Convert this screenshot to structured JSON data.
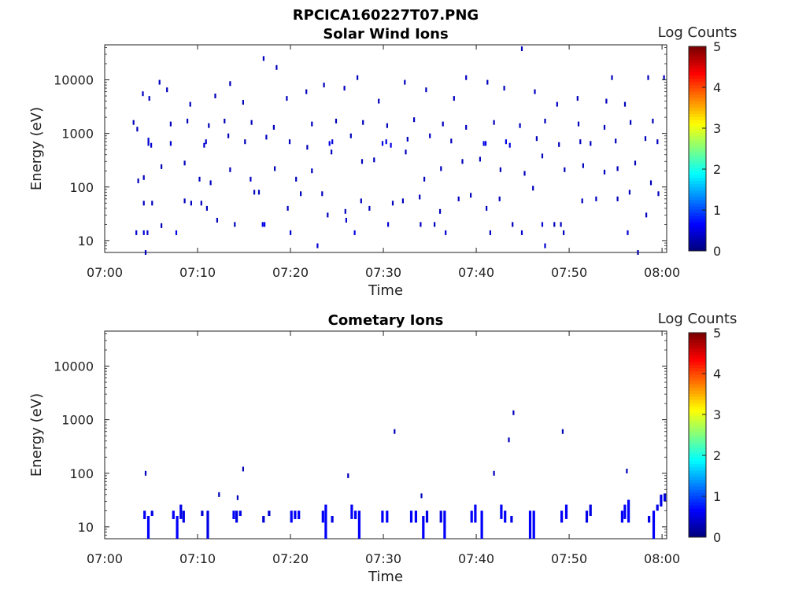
{
  "figure": {
    "title": "RPCICA160227T07.PNG"
  },
  "chart_data": [
    {
      "type": "heatmap",
      "title": "Solar Wind Ions",
      "xlabel": "Time",
      "ylabel": "Energy (eV)",
      "y_scale": "log",
      "xlim_minutes": [
        0,
        60.5
      ],
      "ylim": [
        6,
        45000
      ],
      "x_ticks": [
        "07:00",
        "07:10",
        "07:20",
        "07:30",
        "07:40",
        "07:50",
        "08:00"
      ],
      "y_ticks": [
        "10",
        "100",
        "1000",
        "10000"
      ],
      "y_tick_values": [
        10,
        100,
        1000,
        10000
      ],
      "colorbar": {
        "label": "Log Counts",
        "min": 0,
        "max": 5,
        "ticks": [
          "0",
          "1",
          "2",
          "3",
          "4",
          "5"
        ],
        "colormap": "jet"
      },
      "grid": false,
      "note_points": "each point: [minute after 07:00, energy eV, log count]",
      "points": [
        [
          4.4,
          6,
          0.3
        ],
        [
          3.4,
          14,
          0.4
        ],
        [
          4.2,
          14,
          0.4
        ],
        [
          4.6,
          14,
          0.4
        ],
        [
          6.1,
          19,
          0.3
        ],
        [
          7.7,
          14,
          0.5
        ],
        [
          12.1,
          24,
          0.3
        ],
        [
          14.0,
          20,
          0.3
        ],
        [
          17.0,
          20,
          0.5
        ],
        [
          17.2,
          20,
          0.5
        ],
        [
          20.0,
          14,
          0.4
        ],
        [
          22.9,
          8,
          0.4
        ],
        [
          24.0,
          30,
          0.3
        ],
        [
          26.0,
          24,
          0.4
        ],
        [
          26.9,
          14,
          0.5
        ],
        [
          30.5,
          20,
          0.4
        ],
        [
          34.0,
          20,
          0.3
        ],
        [
          35.5,
          20,
          0.3
        ],
        [
          36.7,
          14,
          0.4
        ],
        [
          41.5,
          14,
          0.3
        ],
        [
          43.9,
          20,
          0.3
        ],
        [
          44.9,
          14,
          0.4
        ],
        [
          47.4,
          8,
          0.4
        ],
        [
          47.1,
          20,
          0.4
        ],
        [
          48.4,
          20,
          0.3
        ],
        [
          49.1,
          20,
          0.3
        ],
        [
          49.4,
          14,
          0.3
        ],
        [
          56.3,
          14,
          0.4
        ],
        [
          57.4,
          6,
          0.2
        ],
        [
          4.2,
          50,
          0.3
        ],
        [
          5.1,
          50,
          0.3
        ],
        [
          8.6,
          55,
          0.3
        ],
        [
          9.3,
          50,
          0.3
        ],
        [
          10.4,
          50,
          0.3
        ],
        [
          11.0,
          40,
          0.3
        ],
        [
          16.1,
          80,
          0.3
        ],
        [
          16.6,
          80,
          0.3
        ],
        [
          19.7,
          40,
          0.3
        ],
        [
          21.1,
          75,
          0.3
        ],
        [
          23.4,
          75,
          0.3
        ],
        [
          25.9,
          35,
          0.3
        ],
        [
          27.6,
          55,
          0.3
        ],
        [
          28.5,
          40,
          0.3
        ],
        [
          31.0,
          50,
          0.3
        ],
        [
          32.1,
          55,
          0.3
        ],
        [
          33.9,
          65,
          0.3
        ],
        [
          36.1,
          35,
          0.3
        ],
        [
          38.1,
          60,
          0.3
        ],
        [
          39.4,
          70,
          0.3
        ],
        [
          41.1,
          40,
          0.3
        ],
        [
          42.5,
          60,
          0.3
        ],
        [
          46.1,
          95,
          0.3
        ],
        [
          51.4,
          55,
          0.3
        ],
        [
          52.9,
          60,
          0.3
        ],
        [
          55.2,
          60,
          0.3
        ],
        [
          56.5,
          80,
          0.3
        ],
        [
          58.3,
          30,
          0.3
        ],
        [
          59.6,
          75,
          0.3
        ],
        [
          3.6,
          130,
          0.3
        ],
        [
          4.2,
          150,
          0.3
        ],
        [
          6.1,
          240,
          0.3
        ],
        [
          8.6,
          280,
          0.3
        ],
        [
          10.2,
          140,
          0.3
        ],
        [
          11.4,
          120,
          0.3
        ],
        [
          13.5,
          210,
          0.3
        ],
        [
          15.7,
          140,
          0.3
        ],
        [
          18.3,
          220,
          0.3
        ],
        [
          20.6,
          140,
          0.3
        ],
        [
          22.3,
          200,
          0.3
        ],
        [
          24.4,
          450,
          0.3
        ],
        [
          27.7,
          300,
          0.3
        ],
        [
          29.0,
          320,
          0.3
        ],
        [
          32.4,
          450,
          0.3
        ],
        [
          34.4,
          140,
          0.3
        ],
        [
          36.2,
          220,
          0.3
        ],
        [
          38.5,
          300,
          0.3
        ],
        [
          40.4,
          330,
          0.3
        ],
        [
          42.6,
          210,
          0.3
        ],
        [
          45.2,
          180,
          0.3
        ],
        [
          47.1,
          380,
          0.3
        ],
        [
          49.5,
          210,
          0.3
        ],
        [
          51.5,
          250,
          0.3
        ],
        [
          53.8,
          190,
          0.3
        ],
        [
          55.2,
          220,
          0.3
        ],
        [
          57.1,
          280,
          0.3
        ],
        [
          58.8,
          120,
          0.3
        ],
        [
          4.7,
          650,
          0.4
        ],
        [
          4.7,
          750,
          0.4
        ],
        [
          5.0,
          600,
          0.4
        ],
        [
          7.1,
          650,
          0.4
        ],
        [
          10.7,
          600,
          0.4
        ],
        [
          10.9,
          700,
          0.4
        ],
        [
          13.3,
          900,
          0.3
        ],
        [
          15.1,
          700,
          0.3
        ],
        [
          17.4,
          850,
          0.3
        ],
        [
          19.9,
          700,
          0.3
        ],
        [
          21.8,
          550,
          0.3
        ],
        [
          24.2,
          650,
          0.5
        ],
        [
          24.5,
          700,
          0.5
        ],
        [
          26.5,
          900,
          0.3
        ],
        [
          29.9,
          650,
          0.5
        ],
        [
          30.3,
          700,
          0.5
        ],
        [
          30.8,
          600,
          0.5
        ],
        [
          32.6,
          780,
          0.3
        ],
        [
          35.0,
          900,
          0.3
        ],
        [
          37.3,
          720,
          0.3
        ],
        [
          40.8,
          650,
          0.5
        ],
        [
          41.0,
          650,
          0.5
        ],
        [
          43.2,
          700,
          0.5
        ],
        [
          43.6,
          600,
          0.5
        ],
        [
          46.5,
          800,
          0.3
        ],
        [
          48.9,
          620,
          0.3
        ],
        [
          51.2,
          700,
          0.3
        ],
        [
          52.3,
          650,
          0.3
        ],
        [
          55.0,
          720,
          0.3
        ],
        [
          58.2,
          800,
          0.3
        ],
        [
          59.5,
          700,
          0.3
        ],
        [
          3.1,
          1600,
          0.3
        ],
        [
          3.5,
          1200,
          0.3
        ],
        [
          7.1,
          1500,
          0.3
        ],
        [
          8.9,
          1700,
          0.3
        ],
        [
          11.2,
          1400,
          0.3
        ],
        [
          12.9,
          1700,
          0.3
        ],
        [
          15.8,
          1600,
          0.3
        ],
        [
          18.2,
          1300,
          0.3
        ],
        [
          22.3,
          1500,
          0.3
        ],
        [
          24.9,
          1700,
          0.3
        ],
        [
          27.8,
          1600,
          0.3
        ],
        [
          30.4,
          1400,
          0.3
        ],
        [
          33.3,
          1800,
          0.3
        ],
        [
          36.4,
          1500,
          0.3
        ],
        [
          38.9,
          1300,
          0.3
        ],
        [
          41.9,
          1600,
          0.3
        ],
        [
          44.7,
          1400,
          0.3
        ],
        [
          47.4,
          1700,
          0.3
        ],
        [
          51.0,
          1500,
          0.3
        ],
        [
          53.8,
          1300,
          0.3
        ],
        [
          56.6,
          1600,
          0.3
        ],
        [
          59.0,
          1700,
          0.3
        ],
        [
          4.1,
          5500,
          0.3
        ],
        [
          4.8,
          4500,
          0.3
        ],
        [
          5.9,
          9000,
          0.3
        ],
        [
          6.7,
          6500,
          0.3
        ],
        [
          9.2,
          3500,
          0.3
        ],
        [
          11.9,
          5000,
          0.3
        ],
        [
          13.5,
          8500,
          0.3
        ],
        [
          14.9,
          3800,
          0.3
        ],
        [
          17.1,
          25000,
          0.3
        ],
        [
          18.5,
          17000,
          0.3
        ],
        [
          19.6,
          4500,
          0.3
        ],
        [
          21.7,
          6000,
          0.3
        ],
        [
          23.6,
          8000,
          0.3
        ],
        [
          25.8,
          7000,
          0.3
        ],
        [
          27.2,
          11000,
          0.3
        ],
        [
          29.5,
          4000,
          0.3
        ],
        [
          32.3,
          9000,
          0.3
        ],
        [
          34.6,
          6500,
          0.3
        ],
        [
          37.6,
          4500,
          0.3
        ],
        [
          38.9,
          11000,
          0.3
        ],
        [
          41.2,
          9000,
          0.3
        ],
        [
          43.0,
          7000,
          0.3
        ],
        [
          44.9,
          38000,
          0.3
        ],
        [
          46.3,
          6000,
          0.3
        ],
        [
          48.7,
          3500,
          0.3
        ],
        [
          50.9,
          4500,
          0.3
        ],
        [
          54.0,
          4000,
          0.3
        ],
        [
          54.6,
          11000,
          0.3
        ],
        [
          56.0,
          3500,
          0.3
        ],
        [
          58.5,
          11000,
          0.3
        ],
        [
          60.2,
          11000,
          0.3
        ]
      ]
    },
    {
      "type": "heatmap",
      "title": "Cometary Ions",
      "xlabel": "Time",
      "ylabel": "Energy (eV)",
      "y_scale": "log",
      "xlim_minutes": [
        0,
        60.5
      ],
      "ylim": [
        6,
        45000
      ],
      "x_ticks": [
        "07:00",
        "07:10",
        "07:20",
        "07:30",
        "07:40",
        "07:50",
        "08:00"
      ],
      "y_ticks": [
        "10",
        "100",
        "1000",
        "10000"
      ],
      "y_tick_values": [
        10,
        100,
        1000,
        10000
      ],
      "colorbar": {
        "label": "Log Counts",
        "min": 0,
        "max": 5,
        "ticks": [
          "0",
          "1",
          "2",
          "3",
          "4",
          "5"
        ],
        "colormap": "jet"
      },
      "grid": false,
      "note_bursts": "each burst: [minute after 07:00, low energy eV, high energy eV, log count]",
      "bursts": [
        [
          4.3,
          14,
          20,
          0.6
        ],
        [
          4.7,
          6,
          16,
          0.6
        ],
        [
          5.1,
          16,
          20,
          0.5
        ],
        [
          7.4,
          14,
          20,
          0.6
        ],
        [
          7.8,
          6,
          16,
          0.6
        ],
        [
          8.2,
          14,
          26,
          0.5
        ],
        [
          8.5,
          12,
          20,
          0.5
        ],
        [
          10.5,
          16,
          20,
          0.4
        ],
        [
          11.1,
          6,
          20,
          0.5
        ],
        [
          13.9,
          14,
          20,
          0.6
        ],
        [
          14.2,
          12,
          20,
          0.5
        ],
        [
          14.6,
          16,
          20,
          0.5
        ],
        [
          17.1,
          12,
          16,
          0.4
        ],
        [
          17.7,
          16,
          20,
          0.4
        ],
        [
          20.1,
          12,
          20,
          0.6
        ],
        [
          20.5,
          14,
          20,
          0.6
        ],
        [
          20.9,
          14,
          20,
          0.6
        ],
        [
          23.5,
          12,
          20,
          0.6
        ],
        [
          23.8,
          6,
          26,
          0.6
        ],
        [
          24.5,
          12,
          16,
          0.5
        ],
        [
          26.6,
          14,
          26,
          0.6
        ],
        [
          27.0,
          14,
          20,
          0.6
        ],
        [
          27.4,
          6,
          20,
          0.6
        ],
        [
          29.9,
          12,
          20,
          0.6
        ],
        [
          30.4,
          12,
          20,
          0.6
        ],
        [
          33.0,
          12,
          20,
          0.6
        ],
        [
          33.5,
          12,
          20,
          0.6
        ],
        [
          34.3,
          6,
          16,
          0.6
        ],
        [
          34.7,
          12,
          20,
          0.5
        ],
        [
          36.2,
          12,
          20,
          0.5
        ],
        [
          36.6,
          6,
          20,
          0.6
        ],
        [
          39.5,
          12,
          20,
          0.6
        ],
        [
          39.9,
          12,
          26,
          0.6
        ],
        [
          40.6,
          6,
          20,
          0.6
        ],
        [
          42.7,
          14,
          26,
          0.6
        ],
        [
          43.1,
          12,
          20,
          0.6
        ],
        [
          43.8,
          12,
          16,
          0.5
        ],
        [
          45.8,
          6,
          20,
          0.6
        ],
        [
          46.2,
          6,
          20,
          0.6
        ],
        [
          49.2,
          12,
          20,
          0.6
        ],
        [
          49.7,
          14,
          26,
          0.6
        ],
        [
          51.9,
          12,
          20,
          0.5
        ],
        [
          52.3,
          16,
          26,
          0.5
        ],
        [
          55.7,
          12,
          20,
          0.6
        ],
        [
          56.0,
          14,
          26,
          0.6
        ],
        [
          56.4,
          12,
          32,
          0.6
        ],
        [
          58.6,
          12,
          16,
          0.5
        ],
        [
          59.1,
          6,
          20,
          0.6
        ],
        [
          59.5,
          20,
          26,
          0.5
        ],
        [
          59.9,
          24,
          40,
          0.5
        ],
        [
          60.3,
          30,
          42,
          0.5
        ]
      ],
      "points": [
        [
          4.4,
          100,
          0.3
        ],
        [
          12.3,
          40,
          0.3
        ],
        [
          14.3,
          35,
          0.3
        ],
        [
          14.9,
          120,
          0.3
        ],
        [
          26.2,
          90,
          0.3
        ],
        [
          34.1,
          38,
          0.3
        ],
        [
          31.2,
          600,
          0.3
        ],
        [
          41.9,
          100,
          0.3
        ],
        [
          43.5,
          420,
          0.3
        ],
        [
          44.0,
          1350,
          0.3
        ],
        [
          49.3,
          600,
          0.3
        ],
        [
          56.2,
          110,
          0.3
        ]
      ]
    }
  ]
}
